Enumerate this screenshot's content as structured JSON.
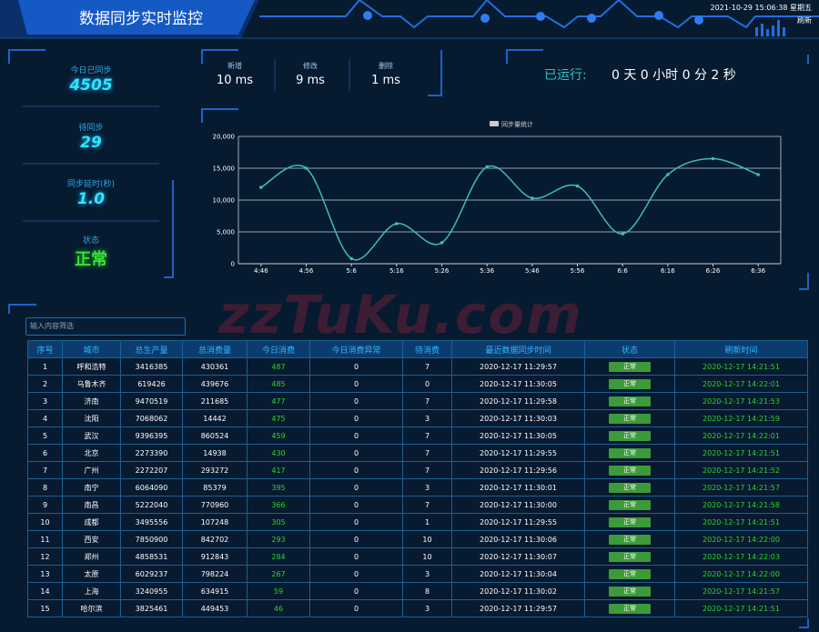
{
  "header": {
    "title": "数据同步实时监控",
    "datetime": "2021-10-29 15:06:38 星期五",
    "refresh": "刷新"
  },
  "stats": [
    {
      "label": "今日已同步",
      "value": "4505"
    },
    {
      "label": "待同步",
      "value": "29"
    },
    {
      "label": "同步延时(秒)",
      "value": "1.0"
    },
    {
      "label": "状态",
      "value": "正常"
    }
  ],
  "latency": [
    {
      "label": "新增",
      "value": "10 ms"
    },
    {
      "label": "修改",
      "value": "9 ms"
    },
    {
      "label": "删除",
      "value": "1 ms"
    }
  ],
  "runtime": {
    "label": "已运行:",
    "value": "0 天 0 小时 0 分 2 秒"
  },
  "chart_data": {
    "type": "line",
    "series": [
      {
        "name": "同步量统计",
        "color": "#3bbfb8",
        "values": [
          12000,
          15000,
          800,
          6300,
          3300,
          15200,
          10300,
          12200,
          4700,
          14000,
          16500,
          14000
        ]
      }
    ],
    "categories": [
      "4:46",
      "4:56",
      "5:6",
      "5:16",
      "5:26",
      "5:36",
      "5:46",
      "5:56",
      "6:6",
      "6:16",
      "6:26",
      "6:36"
    ],
    "ylim": [
      0,
      20000
    ],
    "yticks": [
      0,
      {
        "value": 5000,
        "label": "5,000"
      },
      {
        "value": 10000,
        "label": "10,000"
      },
      {
        "value": 15000,
        "label": "15,000"
      },
      {
        "value": 20000,
        "label": "20,000"
      }
    ],
    "grid": true
  },
  "search": {
    "placeholder": "输入内容筛选"
  },
  "watermark": "zzTuKu.com",
  "table": {
    "columns": [
      "序号",
      "城市",
      "总生产量",
      "总消费量",
      "今日消费",
      "今日消费异常",
      "待消费",
      "最近数据同步时间",
      "状态",
      "刷新时间"
    ],
    "rows": [
      [
        "1",
        "呼和浩特",
        "3416385",
        "430361",
        "487",
        "0",
        "7",
        "2020-12-17 11:29:57",
        "正常",
        "2020-12-17 14:21:51"
      ],
      [
        "2",
        "乌鲁木齐",
        "619426",
        "439676",
        "485",
        "0",
        "0",
        "2020-12-17 11:30:05",
        "正常",
        "2020-12-17 14:22:01"
      ],
      [
        "3",
        "济南",
        "9470519",
        "211685",
        "477",
        "0",
        "7",
        "2020-12-17 11:29:58",
        "正常",
        "2020-12-17 14:21:53"
      ],
      [
        "4",
        "沈阳",
        "7068062",
        "14442",
        "475",
        "0",
        "3",
        "2020-12-17 11:30:03",
        "正常",
        "2020-12-17 14:21:59"
      ],
      [
        "5",
        "武汉",
        "9396395",
        "860524",
        "459",
        "0",
        "7",
        "2020-12-17 11:30:05",
        "正常",
        "2020-12-17 14:22:01"
      ],
      [
        "6",
        "北京",
        "2273390",
        "14938",
        "430",
        "0",
        "7",
        "2020-12-17 11:29:55",
        "正常",
        "2020-12-17 14:21:51"
      ],
      [
        "7",
        "广州",
        "2272207",
        "293272",
        "417",
        "0",
        "7",
        "2020-12-17 11:29:56",
        "正常",
        "2020-12-17 14:21:52"
      ],
      [
        "8",
        "南宁",
        "6064090",
        "85379",
        "395",
        "0",
        "3",
        "2020-12-17 11:30:01",
        "正常",
        "2020-12-17 14:21:57"
      ],
      [
        "9",
        "南昌",
        "5222040",
        "770960",
        "366",
        "0",
        "7",
        "2020-12-17 11:30:00",
        "正常",
        "2020-12-17 14:21:58"
      ],
      [
        "10",
        "成都",
        "3495556",
        "107248",
        "305",
        "0",
        "1",
        "2020-12-17 11:29:55",
        "正常",
        "2020-12-17 14:21:51"
      ],
      [
        "11",
        "西安",
        "7850900",
        "842702",
        "293",
        "0",
        "10",
        "2020-12-17 11:30:06",
        "正常",
        "2020-12-17 14:22:00"
      ],
      [
        "12",
        "郑州",
        "4858531",
        "912843",
        "284",
        "0",
        "10",
        "2020-12-17 11:30:07",
        "正常",
        "2020-12-17 14:22:03"
      ],
      [
        "13",
        "太原",
        "6029237",
        "798224",
        "267",
        "0",
        "3",
        "2020-12-17 11:30:04",
        "正常",
        "2020-12-17 14:22:00"
      ],
      [
        "14",
        "上海",
        "3240955",
        "634915",
        "59",
        "0",
        "8",
        "2020-12-17 11:30:02",
        "正常",
        "2020-12-17 14:21:57"
      ],
      [
        "15",
        "哈尔滨",
        "3825461",
        "449453",
        "46",
        "0",
        "3",
        "2020-12-17 11:29:57",
        "正常",
        "2020-12-17 14:21:51"
      ]
    ]
  }
}
